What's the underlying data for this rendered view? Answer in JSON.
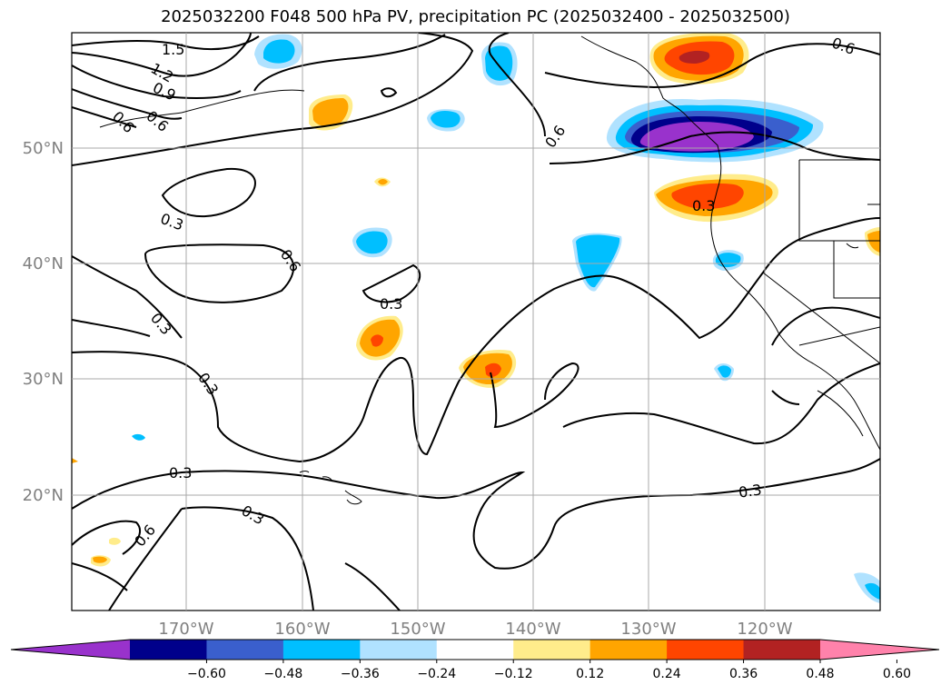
{
  "title": "2025032200 F048 500 hPa PV, precipitation PC (2025032400 - 2025032500)",
  "lat_labels": [
    "50°N",
    "40°N",
    "30°N",
    "20°N"
  ],
  "lon_labels": [
    "170°W",
    "160°W",
    "150°W",
    "140°W",
    "130°W",
    "120°W"
  ],
  "contour_labels": [
    "1.5",
    "1.2",
    "0.9",
    "0.6",
    "0.6",
    "0.6",
    "0.3",
    "0.6",
    "0.3",
    "0.3",
    "0.3",
    "0.3",
    "0.3",
    "0.3",
    "0.6",
    "0.3",
    "0.6"
  ],
  "colorbar": {
    "colors": [
      "#9932CC",
      "#00008B",
      "#3A5FCD",
      "#00BFFF",
      "#B0E2FF",
      "#FFFFFF",
      "#FFEC8B",
      "#FFA500",
      "#FF4500",
      "#B22222",
      "#FF82AB"
    ],
    "ticks": [
      "−0.60",
      "−0.48",
      "−0.36",
      "−0.24",
      "−0.12",
      "0.12",
      "0.24",
      "0.36",
      "0.48",
      "0.60"
    ]
  }
}
